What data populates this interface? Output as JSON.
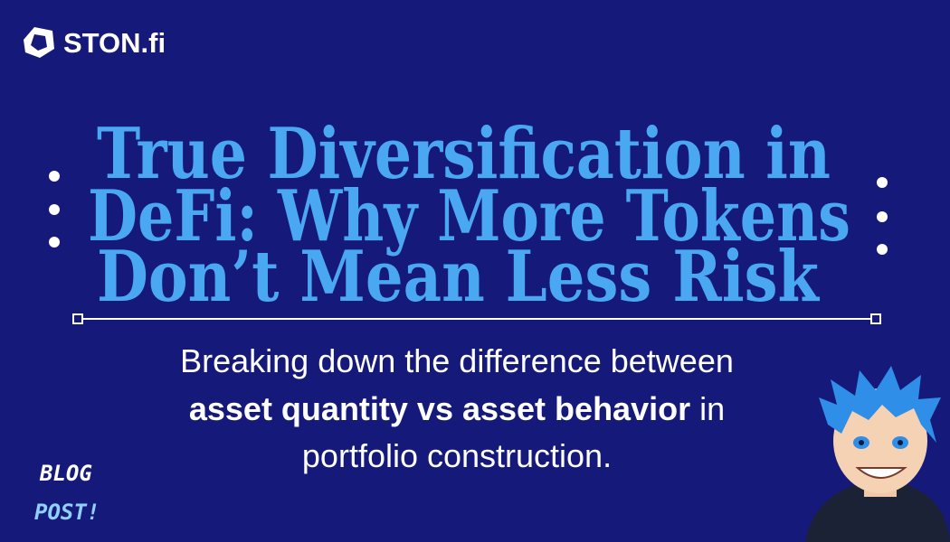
{
  "brand": "STON.fi",
  "title": [
    "True Diversification in",
    "DeFi: Why More Tokens",
    "Don’t Mean Less Risk"
  ],
  "subtitle": [
    [
      {
        "text": "Breaking down the difference between",
        "bold": false
      }
    ],
    [
      {
        "text": "asset quantity vs asset behavior",
        "bold": true
      },
      {
        "text": " in",
        "bold": false
      }
    ],
    [
      {
        "text": "portfolio construction.",
        "bold": false
      }
    ]
  ],
  "badge": [
    "BLOG",
    "POST!"
  ]
}
